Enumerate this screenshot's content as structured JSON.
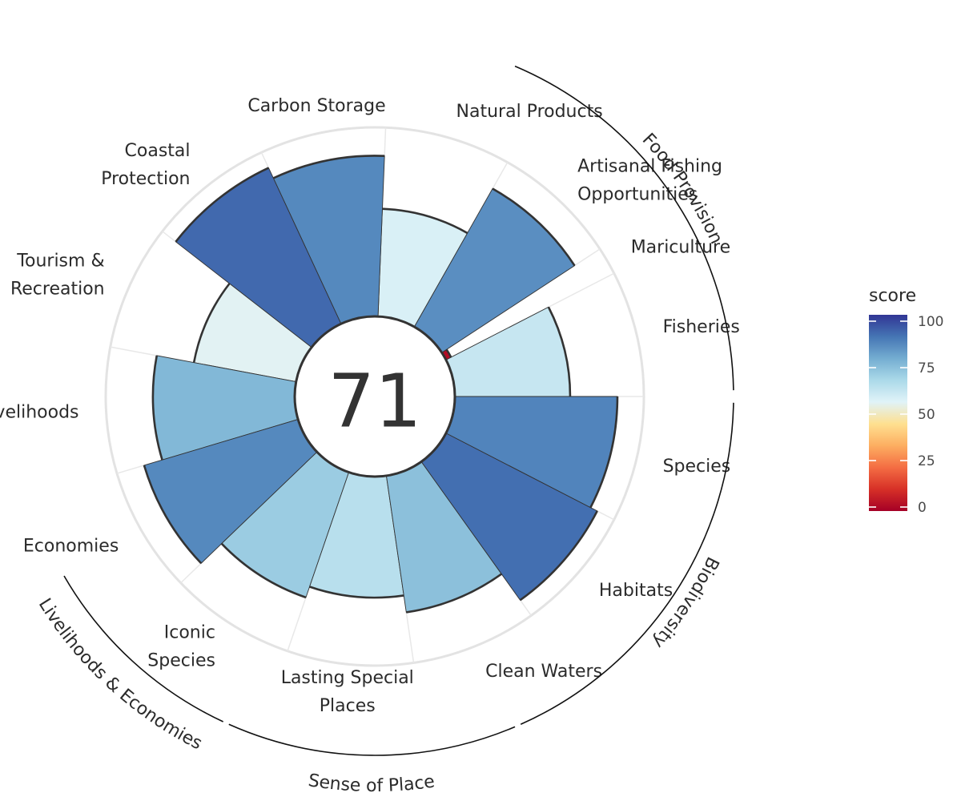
{
  "chart_data": {
    "type": "flower",
    "index_score": "71",
    "petals": [
      {
        "label": "Fisheries",
        "score": 61,
        "weight": 1
      },
      {
        "label": "Mariculture",
        "score": 3,
        "weight": 0.22
      },
      {
        "label": "Artisanal Fishing Opportunities",
        "score": 84,
        "weight": 1
      },
      {
        "label": "Natural Products",
        "score": 57,
        "weight": 1
      },
      {
        "label": "Carbon Storage",
        "score": 85,
        "weight": 1
      },
      {
        "label": "Coastal Protection",
        "score": 91,
        "weight": 1
      },
      {
        "label": "Tourism & Recreation",
        "score": 55,
        "weight": 1
      },
      {
        "label": "Livelihoods",
        "score": 75,
        "weight": 1
      },
      {
        "label": "Economies",
        "score": 85,
        "weight": 1
      },
      {
        "label": "Iconic Species",
        "score": 70,
        "weight": 1
      },
      {
        "label": "Lasting Special Places",
        "score": 64,
        "weight": 1
      },
      {
        "label": "Clean Waters",
        "score": 73,
        "weight": 1
      },
      {
        "label": "Habitats",
        "score": 90,
        "weight": 1
      },
      {
        "label": "Species",
        "score": 86,
        "weight": 1
      }
    ],
    "group_labels": [
      "Food Provision",
      "Biodiversity",
      "Sense of Place",
      "Livelihoods & Economies"
    ],
    "legend": {
      "title": "score",
      "ticks": [
        "0",
        "25",
        "50",
        "75",
        "100"
      ],
      "range": [
        0,
        100
      ],
      "colors": [
        "#a50026",
        "#d73027",
        "#f46d43",
        "#fdae61",
        "#fee090",
        "#e0f3f8",
        "#abd9e9",
        "#74add1",
        "#4575b4",
        "#313695"
      ]
    },
    "ylim": [
      0,
      100
    ],
    "grid": true
  }
}
